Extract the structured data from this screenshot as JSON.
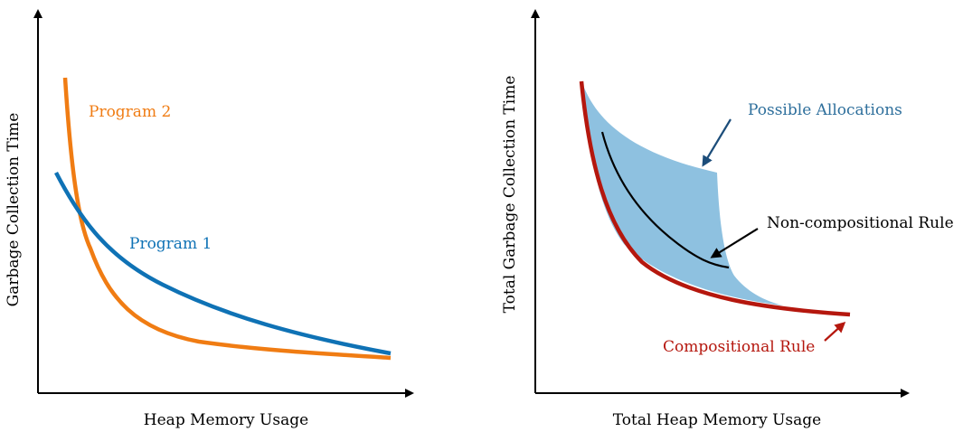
{
  "left_panel": {
    "x_axis_label": "Heap Memory Usage",
    "y_axis_label": "Garbage Collection Time",
    "program_2_label": "Program 2",
    "program_1_label": "Program 1"
  },
  "right_panel": {
    "x_axis_label": "Total Heap Memory Usage",
    "y_axis_label": "Total Garbage Collection Time",
    "possible_allocations_label": "Possible Allocations",
    "non_compositional_label": "Non-compositional Rule",
    "compositional_label": "Compositional Rule"
  },
  "colors": {
    "program_1": "#0f72b5",
    "program_2": "#f07c13",
    "allocations_fill": "#8ec1e0",
    "allocations_text": "#2e6f9c",
    "arrow_blue": "#1c4d7a",
    "compositional": "#b5170e",
    "axis": "#000000"
  }
}
